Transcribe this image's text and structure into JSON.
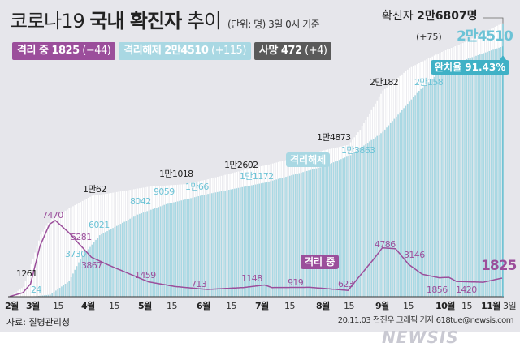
{
  "header": {
    "title_light": "코로나19 ",
    "title_bold": "국내 확진자",
    "title_tail": " 추이",
    "unit": "(단위: 명) 3일 0시 기준"
  },
  "badges": [
    {
      "label": "격리 중 1825",
      "delta": "(−44)",
      "color": "#9b4e9b"
    },
    {
      "label": "격리해제 2만4510",
      "delta": "(+115)",
      "color": "#a9d8e3"
    },
    {
      "label": "사망 472",
      "delta": "(+4)",
      "color": "#5a5a5a"
    }
  ],
  "total": {
    "label": "확진자 ",
    "value": "2만6807명",
    "delta": "(+75)"
  },
  "recovery_rate": "완치율 91.43%",
  "series_tags": {
    "released": "격리해제",
    "isolating": "격리 중"
  },
  "source": "자료: 질병관리청",
  "credit": "20.11.03 전진우 그래픽 기자 618tue@newsis.com",
  "watermark": "NEWSIS",
  "colors": {
    "confirmed": "#ffffff",
    "released": "#a9d8e3",
    "isolating": "#9b4e9b",
    "background": "#e6e6eb"
  },
  "chart_data": {
    "type": "bar+line",
    "xlabel": "",
    "ylabel": "",
    "x_ticks": [
      "2월",
      "3월",
      "15",
      "4월",
      "15",
      "5월",
      "15",
      "6월",
      "15",
      "7월",
      "15",
      "8월",
      "15",
      "9월",
      "15",
      "10월",
      "15",
      "11월",
      "3일"
    ],
    "series": [
      {
        "name": "확진자",
        "type": "bar",
        "points": [
          [
            "02-18",
            31
          ],
          [
            "02-25",
            977
          ],
          [
            "03-01",
            3736
          ],
          [
            "03-05",
            6088
          ],
          [
            "03-10",
            7513
          ],
          [
            "03-20",
            8652
          ],
          [
            "04-01",
            9887
          ],
          [
            "04-08",
            10062
          ],
          [
            "05-01",
            10774
          ],
          [
            "05-20",
            11018
          ],
          [
            "06-01",
            11503
          ],
          [
            "06-24",
            12602
          ],
          [
            "07-01",
            12850
          ],
          [
            "08-01",
            14336
          ],
          [
            "08-14",
            14873
          ],
          [
            "08-20",
            16346
          ],
          [
            "09-01",
            20182
          ],
          [
            "09-15",
            22391
          ],
          [
            "10-01",
            23889
          ],
          [
            "10-15",
            24988
          ],
          [
            "11-03",
            26807
          ]
        ]
      },
      {
        "name": "격리해제",
        "type": "bar",
        "points": [
          [
            "02-18",
            12
          ],
          [
            "03-01",
            24
          ],
          [
            "03-10",
            200
          ],
          [
            "03-20",
            1540
          ],
          [
            "03-26",
            3730
          ],
          [
            "04-05",
            6021
          ],
          [
            "04-25",
            8042
          ],
          [
            "05-10",
            9059
          ],
          [
            "06-01",
            10066
          ],
          [
            "07-01",
            11172
          ],
          [
            "08-01",
            12773
          ],
          [
            "08-15",
            13863
          ],
          [
            "09-01",
            16146
          ],
          [
            "09-20",
            20158
          ],
          [
            "10-01",
            22031
          ],
          [
            "10-15",
            23258
          ],
          [
            "11-03",
            24510
          ]
        ]
      },
      {
        "name": "격리 중",
        "type": "line",
        "points": [
          [
            "02-18",
            20
          ],
          [
            "02-25",
            400
          ],
          [
            "02-29",
            1261
          ],
          [
            "03-05",
            5000
          ],
          [
            "03-10",
            7100
          ],
          [
            "03-13",
            7470
          ],
          [
            "03-20",
            6300
          ],
          [
            "03-25",
            5281
          ],
          [
            "04-01",
            3867
          ],
          [
            "04-10",
            3100
          ],
          [
            "05-01",
            1459
          ],
          [
            "05-15",
            1000
          ],
          [
            "06-01",
            713
          ],
          [
            "06-20",
            900
          ],
          [
            "07-01",
            1148
          ],
          [
            "07-05",
            900
          ],
          [
            "07-25",
            919
          ],
          [
            "08-14",
            623
          ],
          [
            "08-20",
            2000
          ],
          [
            "08-28",
            3800
          ],
          [
            "09-01",
            4786
          ],
          [
            "09-08",
            4700
          ],
          [
            "09-15",
            3146
          ],
          [
            "09-22",
            2200
          ],
          [
            "10-01",
            1856
          ],
          [
            "10-06",
            1900
          ],
          [
            "10-10",
            1500
          ],
          [
            "10-24",
            1420
          ],
          [
            "11-03",
            1825
          ]
        ]
      }
    ],
    "annotations": {
      "confirmed": [
        "1만62",
        "1만1018",
        "1만2602",
        "1만4873",
        "2만182"
      ],
      "released": [
        "24",
        "3730",
        "6021",
        "8042",
        "9059",
        "1만66",
        "1만1172",
        "1만3863",
        "2만158",
        "2만4510"
      ],
      "isolating": [
        "1261",
        "7470",
        "5281",
        "3867",
        "1459",
        "713",
        "1148",
        "919",
        "623",
        "4786",
        "3146",
        "1856",
        "1420",
        "1825"
      ]
    }
  }
}
